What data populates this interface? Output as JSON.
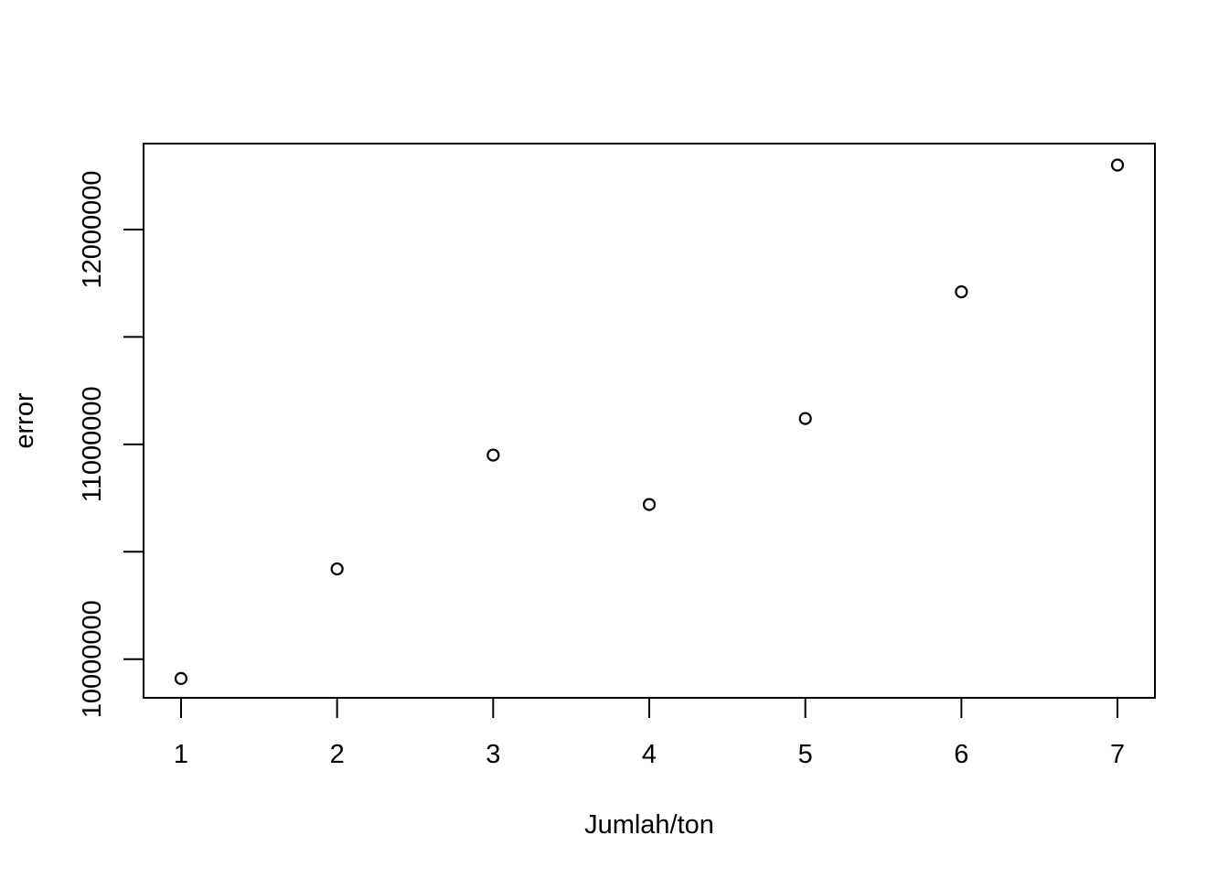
{
  "chart_data": {
    "type": "scatter",
    "title": "",
    "xlabel": "Jumlah/ton",
    "ylabel": "error",
    "x": [
      1,
      2,
      3,
      4,
      5,
      6,
      7
    ],
    "y": [
      9910000,
      10420000,
      10950000,
      10720000,
      11120000,
      11710000,
      12300000
    ],
    "xlim": [
      0.76,
      7.24
    ],
    "ylim": [
      9820000,
      12400000
    ],
    "xticks": [
      1,
      2,
      3,
      4,
      5,
      6,
      7
    ],
    "xtick_labels": [
      "1",
      "2",
      "3",
      "4",
      "5",
      "6",
      "7"
    ],
    "yticks": [
      10000000,
      10500000,
      11000000,
      11500000,
      12000000
    ],
    "ytick_labels": [
      "10000000",
      "",
      "11000000",
      "",
      "12000000"
    ],
    "grid": false,
    "marker": "open-circle",
    "colors": {
      "axis": "#000000",
      "marker": "#000000",
      "background": "#ffffff"
    }
  }
}
